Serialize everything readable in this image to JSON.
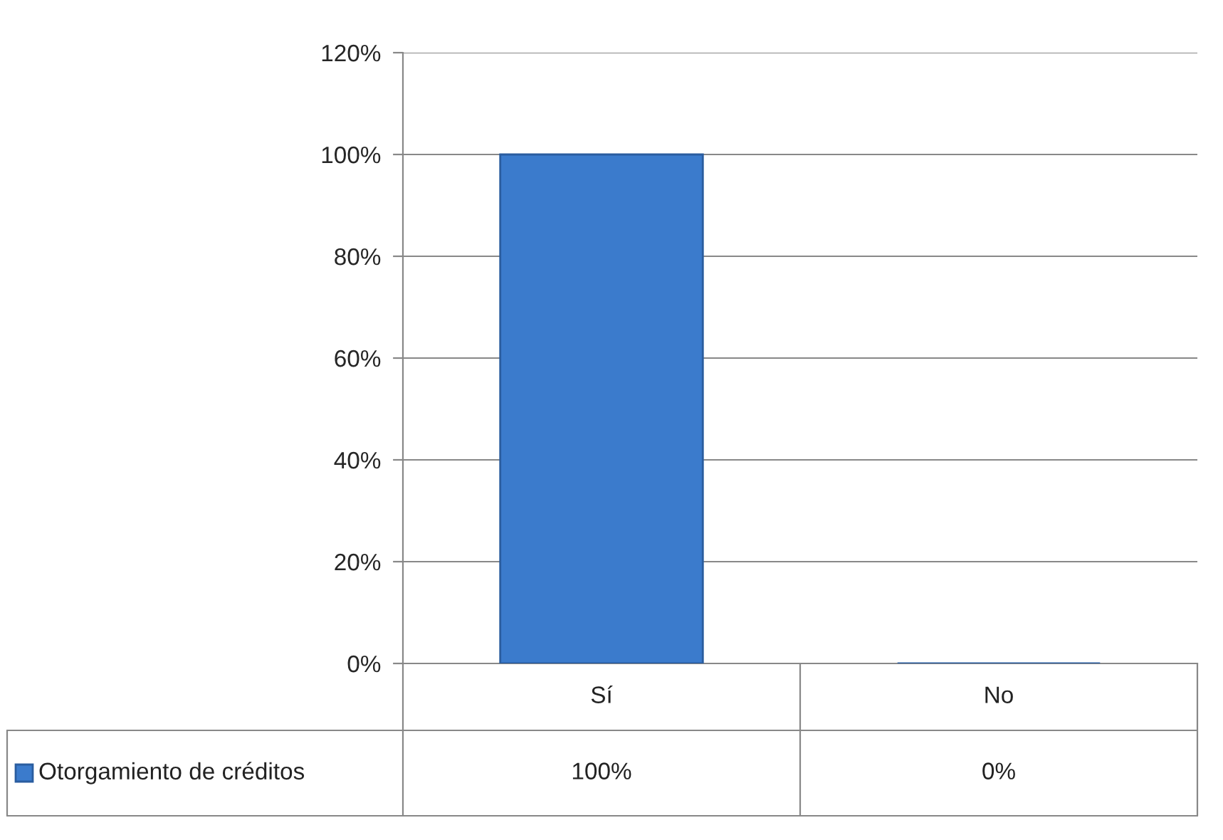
{
  "chart_data": {
    "type": "bar",
    "categories": [
      "Sí",
      "No"
    ],
    "series": [
      {
        "name": "Otorgamiento de créditos",
        "color": "#3b7bcc",
        "values": [
          100,
          0
        ],
        "value_labels": [
          "100%",
          "0%"
        ]
      }
    ],
    "ylim": [
      0,
      120
    ],
    "yticks": [
      {
        "value": 0,
        "label": "0%"
      },
      {
        "value": 20,
        "label": "20%"
      },
      {
        "value": 40,
        "label": "40%"
      },
      {
        "value": 60,
        "label": "60%"
      },
      {
        "value": 80,
        "label": "80%"
      },
      {
        "value": 100,
        "label": "100%"
      },
      {
        "value": 120,
        "label": "120%"
      }
    ],
    "grid": "y",
    "legend": "bottom left"
  }
}
